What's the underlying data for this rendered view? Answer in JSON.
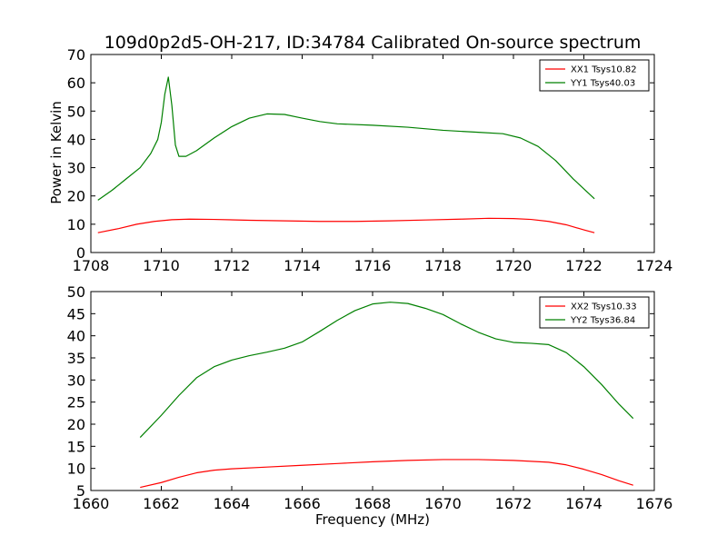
{
  "chart_data": [
    {
      "type": "line",
      "title": "109d0p2d5-OH-217, ID:34784 Calibrated On-source spectrum",
      "xlabel": "",
      "ylabel": "Power in Kelvin",
      "xlim": [
        1708,
        1724
      ],
      "ylim": [
        0,
        70
      ],
      "xticks": [
        1708,
        1710,
        1712,
        1714,
        1716,
        1718,
        1720,
        1722,
        1724
      ],
      "yticks": [
        0,
        10,
        20,
        30,
        40,
        50,
        60,
        70
      ],
      "legend_position": "top-right",
      "grid": false,
      "series": [
        {
          "name": "XX1 Tsys10.82",
          "color": "#ff0000",
          "x": [
            1708.2,
            1708.8,
            1709.3,
            1709.8,
            1710.3,
            1710.8,
            1711.5,
            1712.5,
            1713.5,
            1714.5,
            1715.5,
            1716.5,
            1717.5,
            1718.5,
            1719.3,
            1720.0,
            1720.5,
            1721.0,
            1721.5,
            1722.0,
            1722.3
          ],
          "y": [
            7,
            8.5,
            10,
            11,
            11.6,
            11.8,
            11.7,
            11.4,
            11.2,
            11.0,
            11.0,
            11.2,
            11.5,
            11.8,
            12.1,
            12.0,
            11.7,
            11.0,
            9.8,
            8.0,
            7.0
          ]
        },
        {
          "name": "YY1 Tsys40.03",
          "color": "#008000",
          "x": [
            1708.2,
            1708.6,
            1709.0,
            1709.4,
            1709.7,
            1709.9,
            1710.0,
            1710.1,
            1710.2,
            1710.3,
            1710.4,
            1710.5,
            1710.7,
            1711.0,
            1711.5,
            1712.0,
            1712.5,
            1713.0,
            1713.5,
            1714.0,
            1714.5,
            1715.0,
            1716.0,
            1717.0,
            1718.0,
            1719.0,
            1719.7,
            1720.2,
            1720.7,
            1721.2,
            1721.7,
            1722.3
          ],
          "y": [
            18.5,
            22,
            26,
            30,
            35,
            40,
            46,
            56,
            62,
            52,
            38,
            34,
            34,
            36,
            40.5,
            44.5,
            47.5,
            49,
            48.8,
            47.5,
            46.3,
            45.5,
            45,
            44.3,
            43.2,
            42.5,
            42,
            40.5,
            37.5,
            32.5,
            26,
            19
          ]
        }
      ]
    },
    {
      "type": "line",
      "title": "",
      "xlabel": "Frequency (MHz)",
      "ylabel": "",
      "xlim": [
        1660,
        1676
      ],
      "ylim": [
        5,
        50
      ],
      "xticks": [
        1660,
        1662,
        1664,
        1666,
        1668,
        1670,
        1672,
        1674,
        1676
      ],
      "yticks": [
        5,
        10,
        15,
        20,
        25,
        30,
        35,
        40,
        45,
        50
      ],
      "legend_position": "top-right",
      "grid": false,
      "series": [
        {
          "name": "XX2 Tsys10.33",
          "color": "#ff0000",
          "x": [
            1661.4,
            1662.0,
            1662.5,
            1663.0,
            1663.5,
            1664.0,
            1665.0,
            1666.0,
            1667.0,
            1668.0,
            1669.0,
            1670.0,
            1670.5,
            1671.0,
            1672.0,
            1673.0,
            1673.5,
            1674.0,
            1674.5,
            1675.0,
            1675.4
          ],
          "y": [
            5.7,
            6.8,
            8.0,
            9.0,
            9.6,
            9.9,
            10.3,
            10.7,
            11.1,
            11.5,
            11.8,
            12.0,
            12.0,
            12.0,
            11.8,
            11.4,
            10.8,
            9.8,
            8.6,
            7.2,
            6.2
          ]
        },
        {
          "name": "YY2 Tsys36.84",
          "color": "#008000",
          "x": [
            1661.4,
            1662.0,
            1662.5,
            1663.0,
            1663.5,
            1664.0,
            1664.5,
            1665.0,
            1665.5,
            1666.0,
            1666.5,
            1667.0,
            1667.5,
            1668.0,
            1668.5,
            1669.0,
            1669.5,
            1670.0,
            1670.5,
            1671.0,
            1671.5,
            1672.0,
            1672.5,
            1673.0,
            1673.5,
            1674.0,
            1674.5,
            1675.0,
            1675.4
          ],
          "y": [
            17,
            22,
            26.5,
            30.5,
            33,
            34.5,
            35.5,
            36.3,
            37.2,
            38.6,
            41,
            43.5,
            45.7,
            47.2,
            47.6,
            47.3,
            46.2,
            44.8,
            42.7,
            40.8,
            39.3,
            38.5,
            38.3,
            38.0,
            36.2,
            33,
            29,
            24.5,
            21.3
          ]
        }
      ]
    }
  ]
}
